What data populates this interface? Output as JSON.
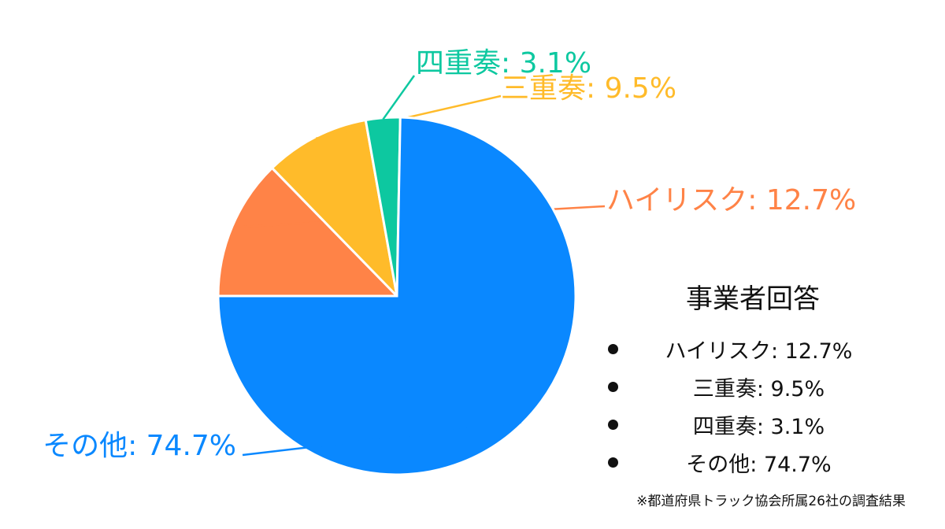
{
  "chart_data": {
    "type": "pie",
    "slices": [
      {
        "name": "ハイリスク",
        "value": 12.7,
        "label": "ハイリスク: 12.7%",
        "color": "#ff8347"
      },
      {
        "name": "三重奏",
        "value": 9.5,
        "label": "三重奏: 9.5%",
        "color": "#ffbb2a"
      },
      {
        "name": "四重奏",
        "value": 3.1,
        "label": "四重奏: 3.1%",
        "color": "#0dc8a0"
      },
      {
        "name": "その他",
        "value": 74.7,
        "label": "その他: 74.7%",
        "color": "#0a88ff"
      }
    ],
    "legend_title": "事業者回答",
    "legend_items": [
      "ハイリスク: 12.7%",
      "三重奏: 9.5%",
      "四重奏: 3.1%",
      "その他: 74.7%"
    ],
    "legend_placement": "right"
  },
  "footnote": "※都道府県トラック協会所属26社の調査結果"
}
